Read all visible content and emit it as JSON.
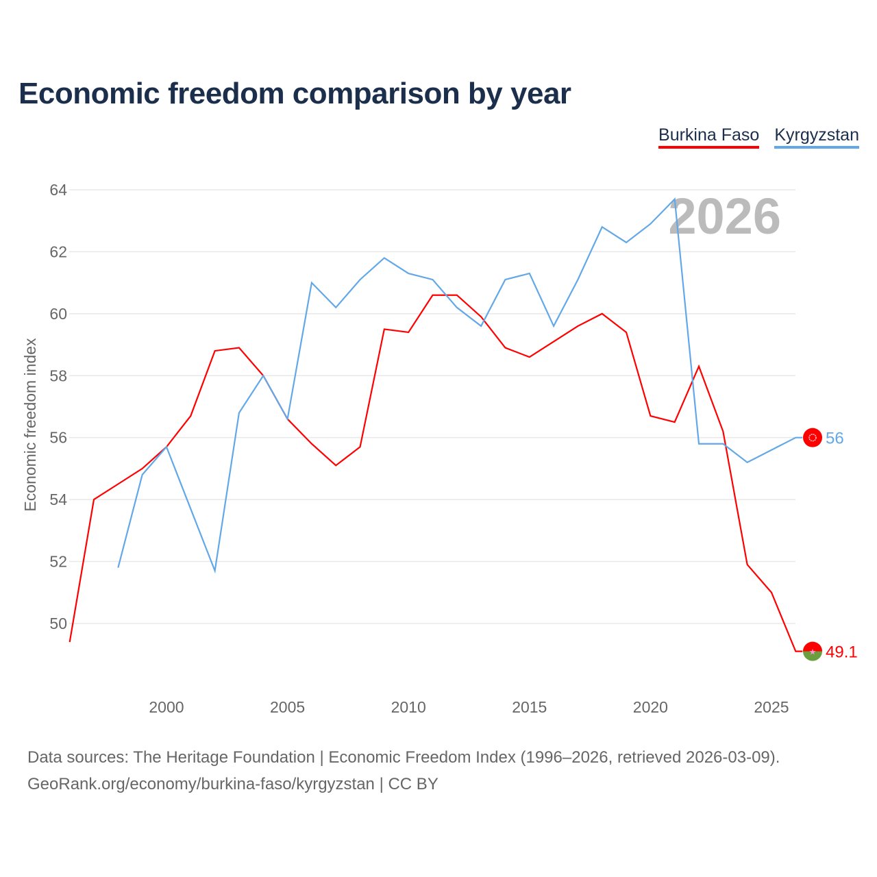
{
  "chart_data": {
    "type": "line",
    "title": "Economic freedom comparison by year",
    "ylabel": "Economic freedom index",
    "xlabel": "",
    "ylim": [
      48,
      64.5
    ],
    "xlim": [
      1996,
      2026
    ],
    "yticks": [
      50,
      52,
      54,
      56,
      58,
      60,
      62,
      64
    ],
    "xticks": [
      2000,
      2005,
      2010,
      2015,
      2020,
      2025
    ],
    "grid": true,
    "legend_position": "top-right",
    "year_watermark": "2026",
    "series": [
      {
        "name": "Burkina Faso",
        "color": "#ff0000",
        "end_label": "49.1",
        "x": [
          1996,
          1997,
          1998,
          1999,
          2000,
          2001,
          2002,
          2003,
          2004,
          2005,
          2006,
          2007,
          2008,
          2009,
          2010,
          2011,
          2012,
          2013,
          2014,
          2015,
          2016,
          2017,
          2018,
          2019,
          2020,
          2021,
          2022,
          2023,
          2024,
          2025,
          2026
        ],
        "y": [
          49.4,
          54.0,
          54.5,
          55.0,
          55.7,
          56.7,
          58.8,
          58.9,
          58.0,
          56.6,
          55.8,
          55.1,
          55.7,
          59.5,
          59.4,
          60.6,
          60.6,
          59.9,
          58.9,
          58.6,
          59.1,
          59.6,
          60.0,
          59.4,
          56.7,
          56.5,
          58.3,
          56.2,
          51.9,
          51.0,
          49.1
        ]
      },
      {
        "name": "Kyrgyzstan",
        "color": "#62a8e8",
        "end_label": "56",
        "x": [
          1998,
          1999,
          2000,
          2001,
          2002,
          2003,
          2004,
          2005,
          2006,
          2007,
          2008,
          2009,
          2010,
          2011,
          2012,
          2013,
          2014,
          2015,
          2016,
          2017,
          2018,
          2019,
          2020,
          2021,
          2022,
          2023,
          2024,
          2025,
          2026
        ],
        "y": [
          51.8,
          54.8,
          55.7,
          53.7,
          51.7,
          56.8,
          58.0,
          56.6,
          61.0,
          60.2,
          61.1,
          61.8,
          61.3,
          61.1,
          60.2,
          59.6,
          61.1,
          61.3,
          59.6,
          61.1,
          62.8,
          62.3,
          62.9,
          63.7,
          55.8,
          55.8,
          55.2,
          55.6,
          56.0
        ]
      }
    ]
  },
  "footer": {
    "line1": "Data sources: The Heritage Foundation | Economic Freedom Index (1996–2026, retrieved 2026-03-09).",
    "line2": "GeoRank.org/economy/burkina-faso/kyrgyzstan | CC BY"
  }
}
